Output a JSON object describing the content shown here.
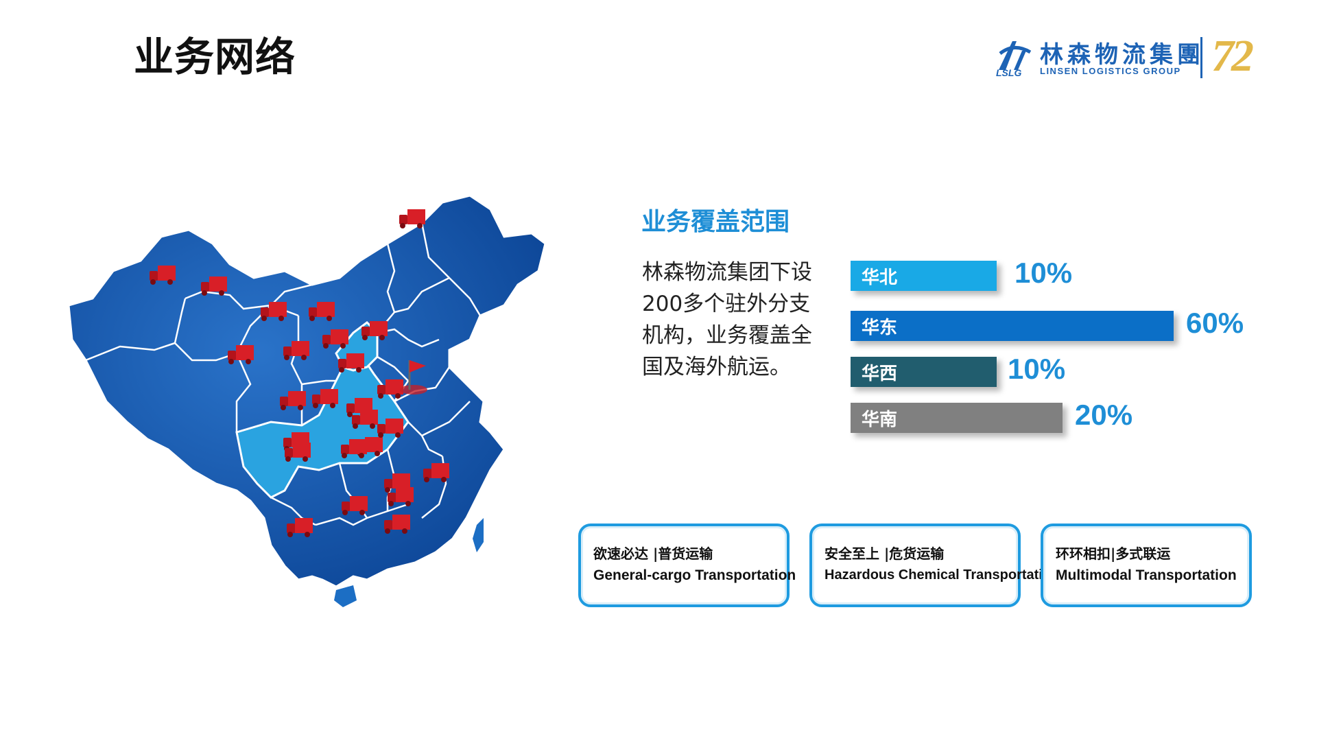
{
  "page": {
    "title": "业务网络"
  },
  "logo": {
    "cn_name": "林森物流集團",
    "en_name": "LINSEN LOGISTICS GROUP",
    "abbr": "LSLG",
    "anniversary": "72"
  },
  "coverage": {
    "heading": "业务覆盖范围",
    "description": "林森物流集团下设200多个驻外分支机构，业务覆盖全国及海外航运。",
    "regions": [
      {
        "label": "华北",
        "percent": "10%",
        "value": 10,
        "color": "#19a9e6"
      },
      {
        "label": "华东",
        "percent": "60%",
        "value": 60,
        "color": "#0b6fc7"
      },
      {
        "label": "华西",
        "percent": "10%",
        "value": 10,
        "color": "#215d6e"
      },
      {
        "label": "华南",
        "percent": "20%",
        "value": 20,
        "color": "#808080"
      }
    ]
  },
  "services": [
    {
      "cn": "欲速必达 |普货运输",
      "en": "General-cargo Transportation"
    },
    {
      "cn": "安全至上 |危货运输",
      "en": "Hazardous Chemical Transportation"
    },
    {
      "cn": "环环相扣|多式联运",
      "en": "Multimodal  Transportation"
    }
  ],
  "colors": {
    "accent": "#1e8ed6",
    "map_dark": "#0d4fa8",
    "map_light": "#2fa3de",
    "truck": "#d01c24"
  },
  "map": {
    "truck_icon": "truck-icon",
    "flag_icon": "flag-pin-icon"
  }
}
